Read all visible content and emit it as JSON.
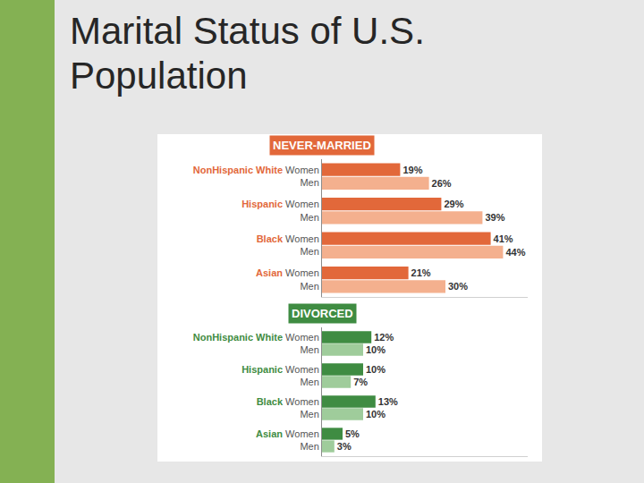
{
  "page": {
    "title": "Marital Status of U.S. Population"
  },
  "chart_data": [
    {
      "type": "bar",
      "orientation": "horizontal",
      "title": "NEVER-MARRIED",
      "categories": [
        "NonHispanic White",
        "Hispanic",
        "Black",
        "Asian"
      ],
      "series": [
        {
          "name": "Women",
          "color": "#e2683a",
          "values": [
            19,
            29,
            41,
            21
          ],
          "value_labels": [
            "19%",
            "29%",
            "41%",
            "21%"
          ]
        },
        {
          "name": "Men",
          "color": "#f4b08e",
          "values": [
            26,
            39,
            44,
            30
          ],
          "value_labels": [
            "26%",
            "39%",
            "44%",
            "30%"
          ]
        }
      ],
      "xlim": [
        0,
        50
      ],
      "data_labels": true,
      "tick_labels": "y",
      "grid": false
    },
    {
      "type": "bar",
      "orientation": "horizontal",
      "title": "DIVORCED",
      "categories": [
        "NonHispanic White",
        "Hispanic",
        "Black",
        "Asian"
      ],
      "series": [
        {
          "name": "Women",
          "color": "#3f8c42",
          "values": [
            12,
            10,
            13,
            5
          ],
          "value_labels": [
            "12%",
            "10%",
            "13%",
            "5%"
          ]
        },
        {
          "name": "Men",
          "color": "#9fcc9b",
          "values": [
            10,
            7,
            10,
            3
          ],
          "value_labels": [
            "10%",
            "7%",
            "10%",
            "3%"
          ]
        }
      ],
      "xlim": [
        0,
        50
      ],
      "data_labels": true,
      "tick_labels": "y",
      "grid": false
    }
  ]
}
